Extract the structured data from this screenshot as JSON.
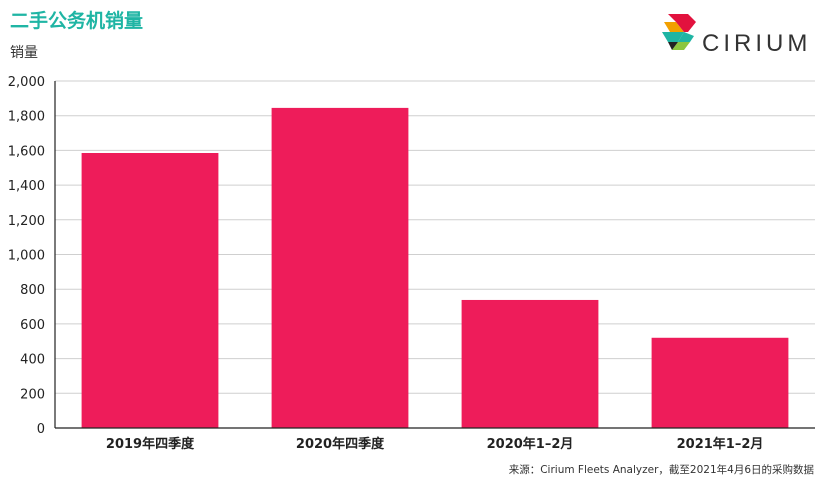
{
  "title": "二手公务机销量",
  "logo": {
    "text": "CIRIUM",
    "colors": [
      "#e2123e",
      "#f2a000",
      "#1fb5a4",
      "#8cc63f",
      "#222222"
    ]
  },
  "source_note": "来源：Cirium Fleets Analyzer，截至2021年4月6日的采购数据",
  "colors": {
    "bar": "#ee1c5a",
    "title": "#1fb5a4",
    "grid": "#cfcfcf",
    "axis": "#222222"
  },
  "chart_data": {
    "type": "bar",
    "title": "二手公务机销量",
    "ylabel": "销量",
    "xlabel": "",
    "categories": [
      "2019年四季度",
      "2020年四季度",
      "2020年1–2月",
      "2021年1–2月"
    ],
    "values": [
      1585,
      1845,
      738,
      520
    ],
    "ylim": [
      0,
      2000
    ],
    "yticks": [
      0,
      200,
      400,
      600,
      800,
      1000,
      1200,
      1400,
      1600,
      1800,
      2000
    ],
    "ytick_labels": [
      "0",
      "200",
      "400",
      "600",
      "800",
      "1,000",
      "1,200",
      "1,400",
      "1,600",
      "1,800",
      "2,000"
    ],
    "grid": true,
    "legend": "none"
  }
}
